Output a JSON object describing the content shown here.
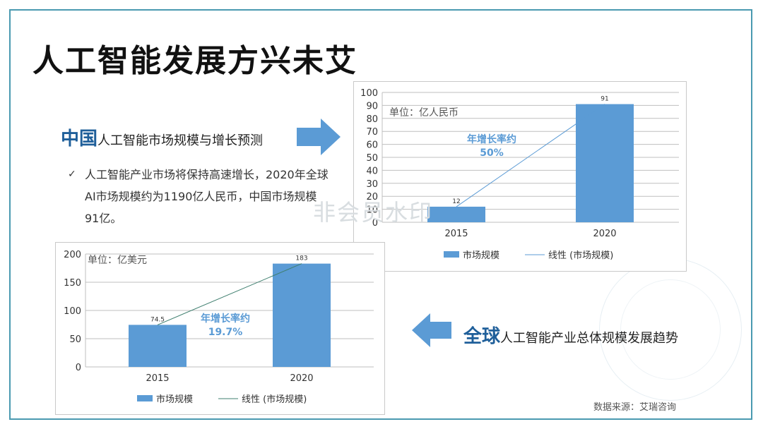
{
  "title": "人工智能发展方兴未艾",
  "china": {
    "highlight": "中国",
    "heading": "人工智能市场规模与增长预测",
    "bullet": "人工智能产业市场将保持高速增长，2020年全球AI市场规模约为1190亿人民币，中国市场规模91亿。"
  },
  "global": {
    "highlight": "全球",
    "heading": "人工智能产业总体规模发展趋势"
  },
  "source": "数据来源：艾瑞咨询",
  "watermark": "非会员水印",
  "colors": {
    "bar": "#5b9bd5",
    "accent_text": "#1f5f9a",
    "trend_line": "#5b9bd5",
    "arrow": "#5b9bd5"
  },
  "chart_data": [
    {
      "type": "bar",
      "unit_label": "单位：亿人民币",
      "categories": [
        "2015",
        "2020"
      ],
      "values": [
        12,
        91
      ],
      "data_labels": [
        "12",
        "91"
      ],
      "ylim": [
        0,
        100
      ],
      "yticks": [
        "0",
        "10",
        "20",
        "30",
        "40",
        "50",
        "60",
        "70",
        "80",
        "90",
        "100"
      ],
      "annotation": [
        "年增长率约",
        "50%"
      ],
      "legend": [
        "市场规模",
        "线性 (市场规模)"
      ],
      "trendline": true,
      "grid": true
    },
    {
      "type": "bar",
      "unit_label": "单位：亿美元",
      "categories": [
        "2015",
        "2020"
      ],
      "values": [
        74.5,
        183
      ],
      "data_labels": [
        "74.5",
        "183"
      ],
      "ylim": [
        0,
        200
      ],
      "yticks": [
        "0",
        "50",
        "100",
        "150",
        "200"
      ],
      "annotation": [
        "年增长率约",
        "19.7%"
      ],
      "legend": [
        "市场规模",
        "线性 (市场规模)"
      ],
      "trendline": true,
      "grid": true
    }
  ]
}
